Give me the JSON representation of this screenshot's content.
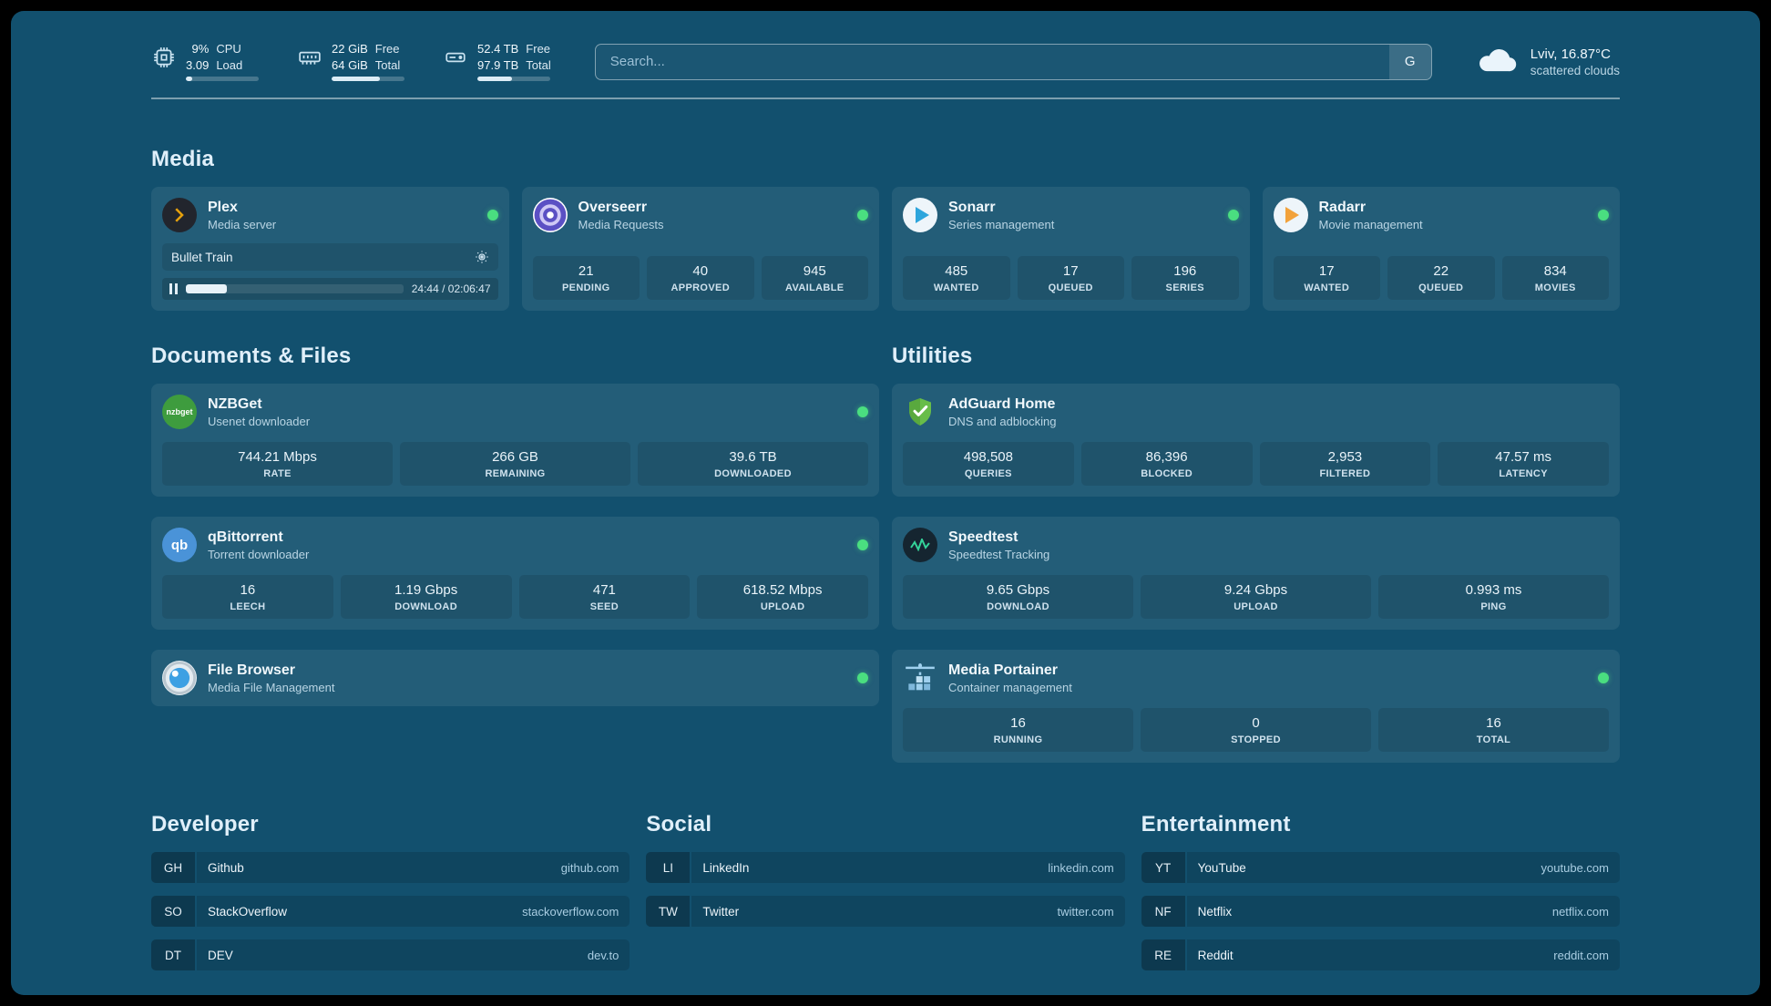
{
  "theme": {
    "background": "#12506e",
    "status_green": "#4ade80",
    "plex_amber": "#e5a00d",
    "sonarr_blue": "#2da5dc",
    "radarr_orange": "#f2a23b",
    "adguard_green": "#68bd49"
  },
  "header": {
    "resources": [
      {
        "icon": "cpu-icon",
        "value1": "9%",
        "value2": "3.09",
        "label1": "CPU",
        "label2": "Load",
        "progress": 9
      },
      {
        "icon": "memory-icon",
        "value1": "22 GiB",
        "value2": "64 GiB",
        "label1": "Free",
        "label2": "Total",
        "progress": 66
      },
      {
        "icon": "disk-icon",
        "value1": "52.4 TB",
        "value2": "97.9 TB",
        "label1": "Free",
        "label2": "Total",
        "progress": 47
      }
    ],
    "search": {
      "placeholder": "Search...",
      "provider": "G"
    },
    "weather": {
      "icon": "cloud-icon",
      "title": "Lviv, 16.87°C",
      "subtitle": "scattered clouds"
    }
  },
  "media": {
    "title": "Media",
    "cards": [
      {
        "icon": "plex-icon",
        "name": "Plex",
        "subtitle": "Media server",
        "player": {
          "title": "Bullet Train",
          "time": "24:44 / 02:06:47",
          "progress": 19
        }
      },
      {
        "icon": "overseerr-icon",
        "name": "Overseerr",
        "subtitle": "Media Requests",
        "stats": [
          {
            "value": "21",
            "label": "PENDING"
          },
          {
            "value": "40",
            "label": "APPROVED"
          },
          {
            "value": "945",
            "label": "AVAILABLE"
          }
        ]
      },
      {
        "icon": "sonarr-icon",
        "name": "Sonarr",
        "subtitle": "Series management",
        "stats": [
          {
            "value": "485",
            "label": "WANTED"
          },
          {
            "value": "17",
            "label": "QUEUED"
          },
          {
            "value": "196",
            "label": "SERIES"
          }
        ]
      },
      {
        "icon": "radarr-icon",
        "name": "Radarr",
        "subtitle": "Movie management",
        "stats": [
          {
            "value": "17",
            "label": "WANTED"
          },
          {
            "value": "22",
            "label": "QUEUED"
          },
          {
            "value": "834",
            "label": "MOVIES"
          }
        ]
      }
    ]
  },
  "documents": {
    "title": "Documents & Files",
    "cards": [
      {
        "icon": "nzbget-icon",
        "name": "NZBGet",
        "subtitle": "Usenet downloader",
        "stats": [
          {
            "value": "744.21 Mbps",
            "label": "RATE"
          },
          {
            "value": "266 GB",
            "label": "REMAINING"
          },
          {
            "value": "39.6 TB",
            "label": "DOWNLOADED"
          }
        ]
      },
      {
        "icon": "qbittorrent-icon",
        "name": "qBittorrent",
        "subtitle": "Torrent downloader",
        "stats": [
          {
            "value": "16",
            "label": "LEECH"
          },
          {
            "value": "1.19 Gbps",
            "label": "DOWNLOAD"
          },
          {
            "value": "471",
            "label": "SEED"
          },
          {
            "value": "618.52 Mbps",
            "label": "UPLOAD"
          }
        ]
      },
      {
        "icon": "filebrowser-icon",
        "name": "File Browser",
        "subtitle": "Media File Management",
        "stats": []
      }
    ]
  },
  "utilities": {
    "title": "Utilities",
    "cards": [
      {
        "icon": "adguard-icon",
        "name": "AdGuard Home",
        "subtitle": "DNS and adblocking",
        "stats": [
          {
            "value": "498,508",
            "label": "QUERIES"
          },
          {
            "value": "86,396",
            "label": "BLOCKED"
          },
          {
            "value": "2,953",
            "label": "FILTERED"
          },
          {
            "value": "47.57 ms",
            "label": "LATENCY"
          }
        ]
      },
      {
        "icon": "speedtest-icon",
        "name": "Speedtest",
        "subtitle": "Speedtest Tracking",
        "stats": [
          {
            "value": "9.65 Gbps",
            "label": "DOWNLOAD"
          },
          {
            "value": "9.24 Gbps",
            "label": "UPLOAD"
          },
          {
            "value": "0.993 ms",
            "label": "PING"
          }
        ]
      },
      {
        "icon": "portainer-icon",
        "name": "Media Portainer",
        "subtitle": "Container management",
        "stats": [
          {
            "value": "16",
            "label": "RUNNING"
          },
          {
            "value": "0",
            "label": "STOPPED"
          },
          {
            "value": "16",
            "label": "TOTAL"
          }
        ]
      }
    ]
  },
  "bookmarks": {
    "groups": [
      {
        "title": "Developer",
        "items": [
          {
            "abbr": "GH",
            "name": "Github",
            "url": "github.com"
          },
          {
            "abbr": "SO",
            "name": "StackOverflow",
            "url": "stackoverflow.com"
          },
          {
            "abbr": "DT",
            "name": "DEV",
            "url": "dev.to"
          }
        ]
      },
      {
        "title": "Social",
        "items": [
          {
            "abbr": "LI",
            "name": "LinkedIn",
            "url": "linkedin.com"
          },
          {
            "abbr": "TW",
            "name": "Twitter",
            "url": "twitter.com"
          }
        ]
      },
      {
        "title": "Entertainment",
        "items": [
          {
            "abbr": "YT",
            "name": "YouTube",
            "url": "youtube.com"
          },
          {
            "abbr": "NF",
            "name": "Netflix",
            "url": "netflix.com"
          },
          {
            "abbr": "RE",
            "name": "Reddit",
            "url": "reddit.com"
          }
        ]
      }
    ]
  }
}
